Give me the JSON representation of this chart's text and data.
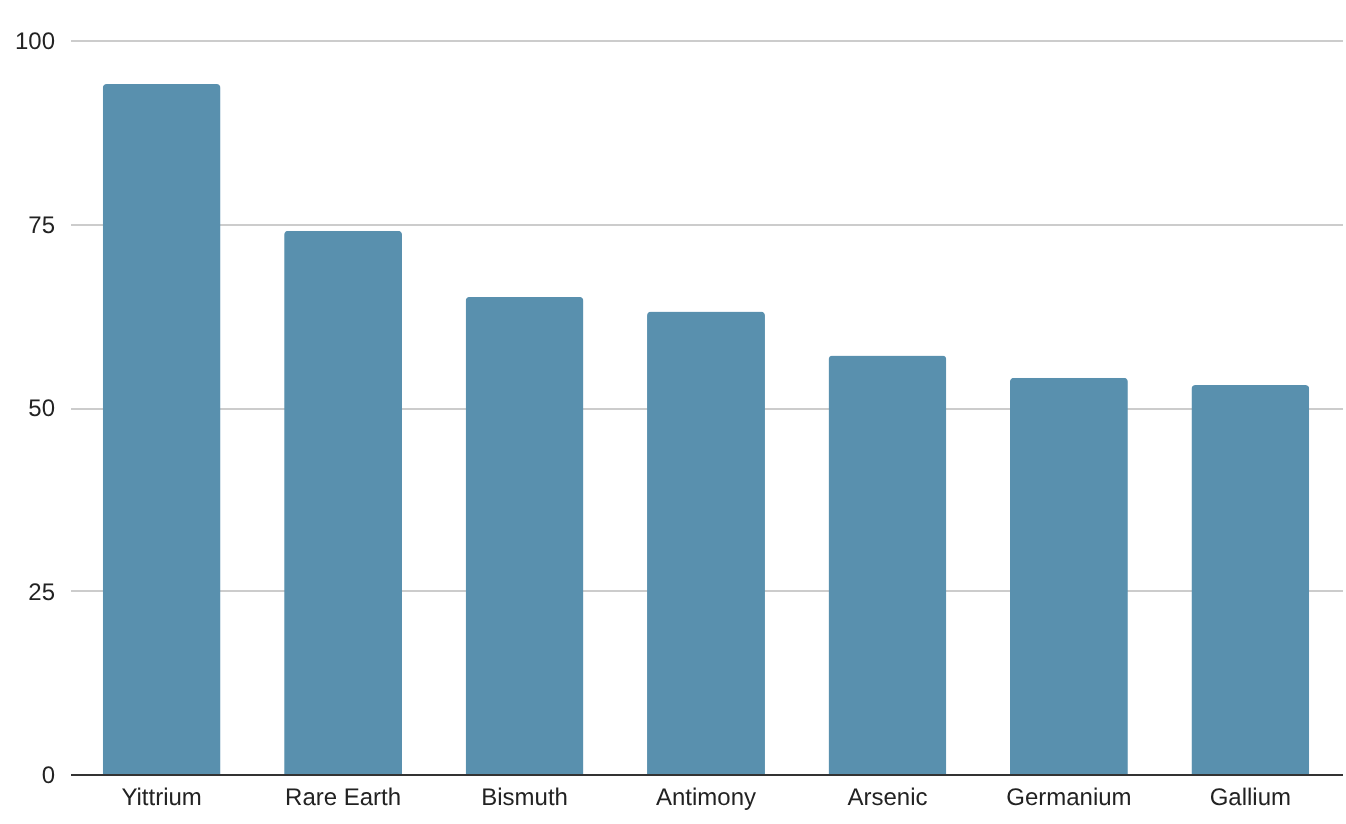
{
  "chart_data": {
    "type": "bar",
    "categories": [
      "Yittrium",
      "Rare Earth",
      "Bismuth",
      "Antimony",
      "Arsenic",
      "Germanium",
      "Gallium"
    ],
    "values": [
      94,
      74,
      65,
      63,
      57,
      54,
      53
    ],
    "color": "#5990ae",
    "ylim": [
      0,
      100
    ],
    "yticks": [
      0,
      25,
      50,
      75,
      100
    ],
    "grid": "y"
  }
}
